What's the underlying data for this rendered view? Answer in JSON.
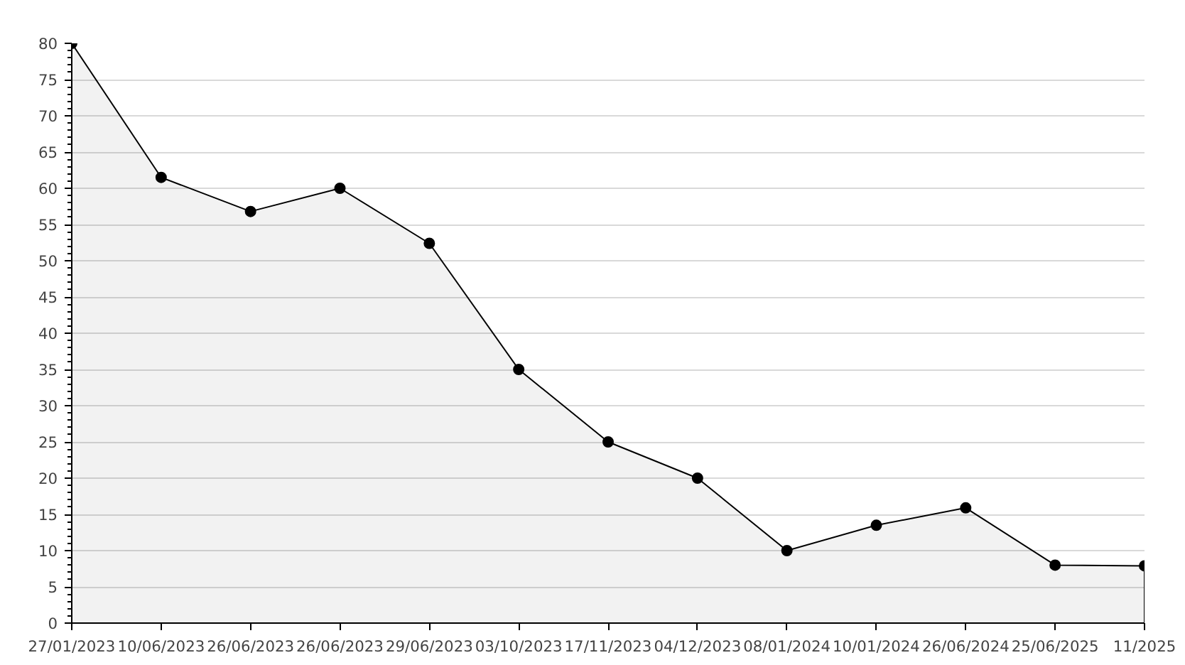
{
  "chart_data": {
    "type": "area",
    "categories": [
      "27/01/2023",
      "10/06/2023",
      "26/06/2023",
      "26/06/2023",
      "29/06/2023",
      "03/10/2023",
      "17/11/2023",
      "04/12/2023",
      "08/01/2024",
      "10/01/2024",
      "26/06/2024",
      "25/06/2025",
      "11/2025"
    ],
    "series": [
      {
        "color": "#000000",
        "values": [
          80,
          61.5,
          56.8,
          60,
          52.4,
          35,
          25,
          20,
          10,
          13.5,
          15.9,
          8.0,
          7.9
        ]
      }
    ],
    "ylim": [
      0,
      80
    ],
    "yticks": [
      0,
      5,
      10,
      15,
      20,
      25,
      30,
      35,
      40,
      45,
      50,
      55,
      60,
      65,
      70,
      75,
      80
    ],
    "grid": "y",
    "marker": "circle",
    "line_style": "solid"
  }
}
